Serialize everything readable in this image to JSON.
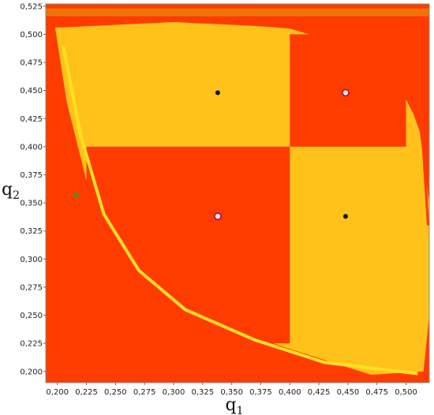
{
  "chart_data": {
    "type": "heatmap",
    "title": "",
    "xlabel": "q",
    "xlabel_sub": "1",
    "ylabel": "q",
    "ylabel_sub": "2",
    "xlim": [
      0.19,
      0.52
    ],
    "ylim": [
      0.19,
      0.527
    ],
    "xticks": [
      "0,200",
      "0,225",
      "0,250",
      "0,275",
      "0,300",
      "0,325",
      "0,350",
      "0,375",
      "0,400",
      "0,425",
      "0,450",
      "0,475",
      "0,500"
    ],
    "xtick_values": [
      0.2,
      0.225,
      0.25,
      0.275,
      0.3,
      0.325,
      0.35,
      0.375,
      0.4,
      0.425,
      0.45,
      0.475,
      0.5
    ],
    "yticks": [
      "0,200",
      "0,225",
      "0,250",
      "0,275",
      "0,300",
      "0,325",
      "0,350",
      "0,375",
      "0,400",
      "0,425",
      "0,450",
      "0,475",
      "0,500",
      "0,525"
    ],
    "ytick_values": [
      0.2,
      0.225,
      0.25,
      0.275,
      0.3,
      0.325,
      0.35,
      0.375,
      0.4,
      0.425,
      0.45,
      0.475,
      0.5,
      0.525
    ],
    "grid": false,
    "colors": {
      "background": "#ff3c00",
      "region": "#ffc21a",
      "region_light": "#ffe020",
      "dot": "#111111",
      "marker_fill": "#f4eaf0",
      "marker_edge": "#a0104a",
      "green_dot": "#2e9e30"
    },
    "regions": [
      {
        "name": "yellow-top-left",
        "x": [
          0.225,
          0.4
        ],
        "y": [
          0.4,
          0.5
        ]
      },
      {
        "name": "yellow-bottom-right",
        "x": [
          0.4,
          0.5
        ],
        "y": [
          0.225,
          0.4
        ]
      }
    ],
    "points": [
      {
        "kind": "black-dot",
        "x": 0.338,
        "y": 0.448
      },
      {
        "kind": "black-dot",
        "x": 0.448,
        "y": 0.338
      },
      {
        "kind": "open-marker",
        "x": 0.448,
        "y": 0.448
      },
      {
        "kind": "open-marker",
        "x": 0.338,
        "y": 0.338
      },
      {
        "kind": "green-dot",
        "x": 0.216,
        "y": 0.357
      }
    ]
  }
}
